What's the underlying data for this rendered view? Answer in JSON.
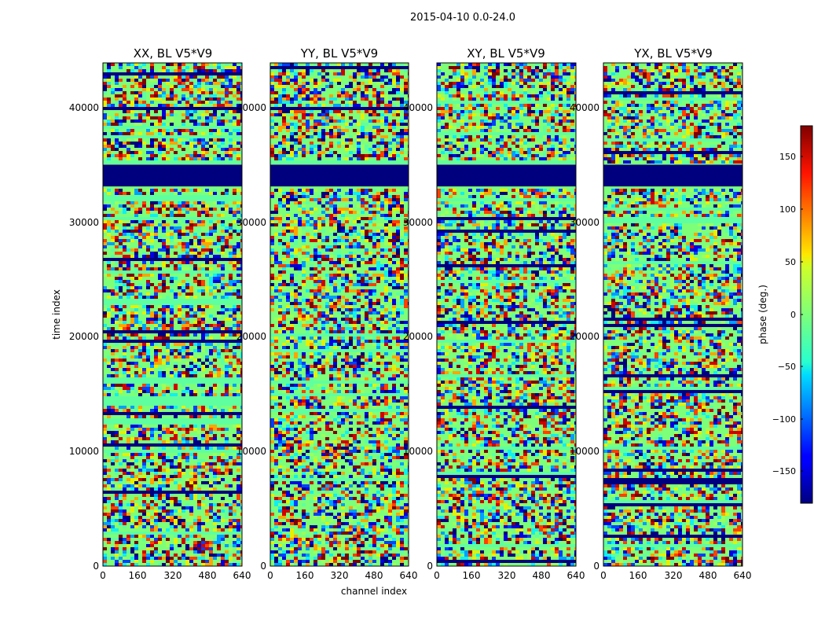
{
  "figure": {
    "suptitle": "2015-04-10 0.0-24.0"
  },
  "chart_data": {
    "type": "heatmap",
    "title": "2015-04-10 0.0-24.0",
    "xlabel": "channel index",
    "ylabel": "time index",
    "xlim": [
      0,
      640
    ],
    "ylim": [
      0,
      44000
    ],
    "xticks": [
      0,
      160,
      320,
      480,
      640
    ],
    "yticks": [
      0,
      10000,
      20000,
      30000,
      40000
    ],
    "panels": [
      {
        "title": "XX, BL V5*V9"
      },
      {
        "title": "YY, BL V5*V9"
      },
      {
        "title": "XY, BL V5*V9"
      },
      {
        "title": "YX, BL V5*V9"
      }
    ],
    "flagged_time_range": [
      33200,
      35100
    ],
    "colorbar": {
      "label": "phase (deg.)",
      "range": [
        -180,
        180
      ],
      "ticks": [
        -150,
        -100,
        -50,
        0,
        50,
        100,
        150
      ],
      "colormap": "jet"
    }
  },
  "text": {
    "xtick_labels": [
      "0",
      "160",
      "320",
      "480",
      "640"
    ],
    "ytick_labels": [
      "0",
      "10000",
      "20000",
      "30000",
      "40000"
    ],
    "cbar_tick_labels": [
      "−150",
      "−100",
      "−50",
      "0",
      "50",
      "100",
      "150"
    ]
  }
}
